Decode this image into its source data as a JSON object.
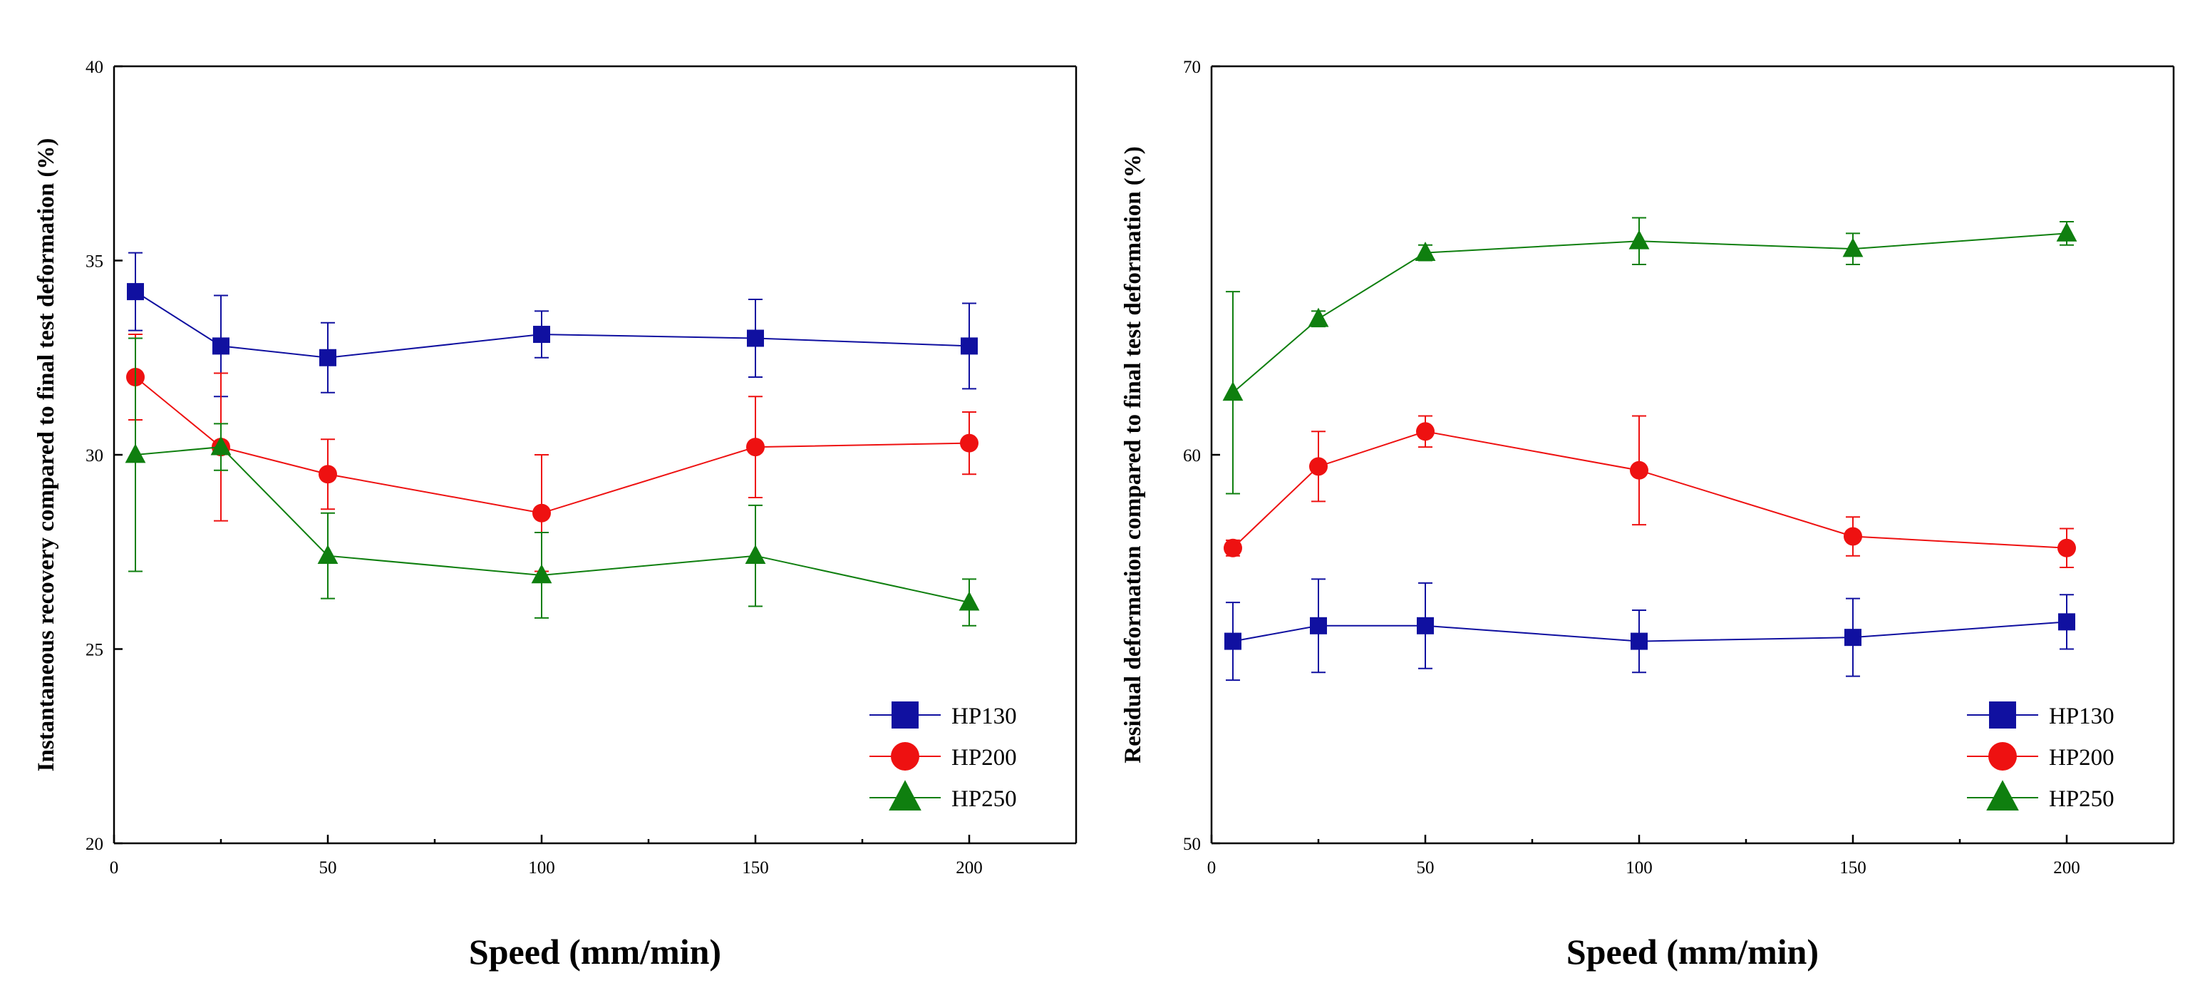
{
  "chart_data": [
    {
      "type": "line",
      "title": "",
      "xlabel": "Speed (mm/min)",
      "ylabel": "Instantaneous recovery compared to final test deformation (%)",
      "xlim": [
        0,
        225
      ],
      "ylim": [
        20,
        40
      ],
      "xticks": [
        0,
        50,
        100,
        150,
        200
      ],
      "yticks": [
        20,
        25,
        30,
        35,
        40
      ],
      "x": [
        5,
        25,
        50,
        100,
        150,
        200
      ],
      "legend_position": "bottom-right",
      "series": [
        {
          "name": "HP130",
          "color": "#1010a0",
          "marker": "square",
          "values": [
            34.2,
            32.8,
            32.5,
            33.1,
            33.0,
            32.8
          ],
          "errors": [
            1.0,
            1.3,
            0.9,
            0.6,
            1.0,
            1.1
          ]
        },
        {
          "name": "HP200",
          "color": "#ee1111",
          "marker": "circle",
          "values": [
            32.0,
            30.2,
            29.5,
            28.5,
            30.2,
            30.3
          ],
          "errors": [
            1.1,
            1.9,
            0.9,
            1.5,
            1.3,
            0.8
          ]
        },
        {
          "name": "HP250",
          "color": "#0f7f0f",
          "marker": "triangle",
          "values": [
            30.0,
            30.2,
            27.4,
            26.9,
            27.4,
            26.2
          ],
          "errors": [
            3.0,
            0.6,
            1.1,
            1.1,
            1.3,
            0.6
          ]
        }
      ]
    },
    {
      "type": "line",
      "title": "",
      "xlabel": "Speed (mm/min)",
      "ylabel": "Residual deformation compared to final test deformation (%)",
      "xlim": [
        0,
        225
      ],
      "ylim": [
        50,
        70
      ],
      "xticks": [
        0,
        50,
        100,
        150,
        200
      ],
      "yticks": [
        50,
        60,
        70
      ],
      "x": [
        5,
        25,
        50,
        100,
        150,
        200
      ],
      "legend_position": "bottom-right",
      "series": [
        {
          "name": "HP130",
          "color": "#1010a0",
          "marker": "square",
          "values": [
            55.2,
            55.6,
            55.6,
            55.2,
            55.3,
            55.7
          ],
          "errors": [
            1.0,
            1.2,
            1.1,
            0.8,
            1.0,
            0.7
          ]
        },
        {
          "name": "HP200",
          "color": "#ee1111",
          "marker": "circle",
          "values": [
            57.6,
            59.7,
            60.6,
            59.6,
            57.9,
            57.6
          ],
          "errors": [
            0.2,
            0.9,
            0.4,
            1.4,
            0.5,
            0.5
          ]
        },
        {
          "name": "HP250",
          "color": "#0f7f0f",
          "marker": "triangle",
          "values": [
            61.6,
            63.5,
            65.2,
            65.5,
            65.3,
            65.7
          ],
          "errors": [
            2.6,
            0.2,
            0.2,
            0.6,
            0.4,
            0.3
          ]
        }
      ]
    }
  ]
}
